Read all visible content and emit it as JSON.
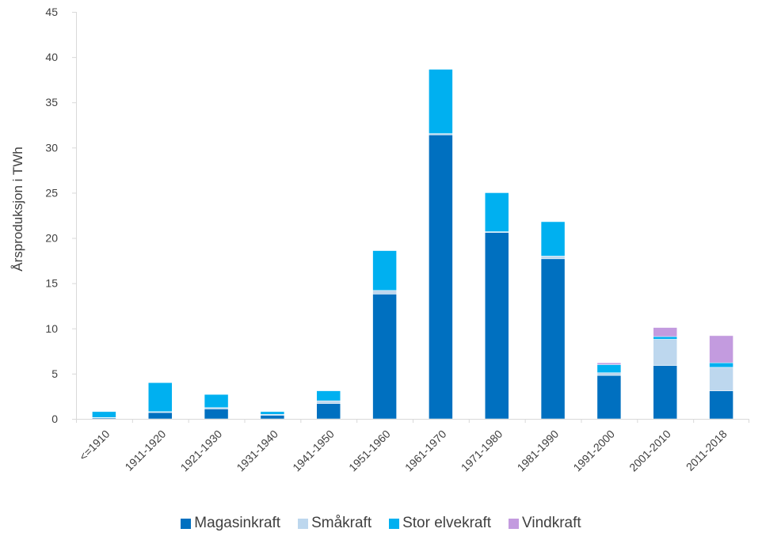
{
  "chart_data": {
    "type": "bar",
    "stacked": true,
    "ylabel": "Årsproduksjon i TWh",
    "ylim": [
      0,
      45
    ],
    "yticks": [
      0,
      5,
      10,
      15,
      20,
      25,
      30,
      35,
      40,
      45
    ],
    "grid": false,
    "legend_position": "bottom",
    "categories": [
      "<=1910",
      "1911-1920",
      "1921-1930",
      "1931-1940",
      "1941-1950",
      "1951-1960",
      "1961-1970",
      "1971-1980",
      "1981-1990",
      "1991-2000",
      "2001-2010",
      "2011-2018"
    ],
    "series": [
      {
        "name": "Magasinkraft",
        "color": "#0070c0",
        "values": [
          0.1,
          0.7,
          1.1,
          0.4,
          1.7,
          13.8,
          31.4,
          20.6,
          17.7,
          4.8,
          5.9,
          3.1
        ]
      },
      {
        "name": "Småkraft",
        "color": "#bdd7ee",
        "values": [
          0.05,
          0.1,
          0.15,
          0.1,
          0.3,
          0.4,
          0.15,
          0.1,
          0.3,
          0.3,
          2.9,
          2.6
        ]
      },
      {
        "name": "Stor elvekraft",
        "color": "#00b0f0",
        "values": [
          0.65,
          3.2,
          1.45,
          0.3,
          1.1,
          4.4,
          7.1,
          4.3,
          3.8,
          0.9,
          0.3,
          0.5
        ]
      },
      {
        "name": "Vindkraft",
        "color": "#c39bdf",
        "values": [
          0,
          0,
          0,
          0,
          0,
          0,
          0,
          0,
          0,
          0.2,
          1.0,
          3.0
        ]
      }
    ]
  }
}
